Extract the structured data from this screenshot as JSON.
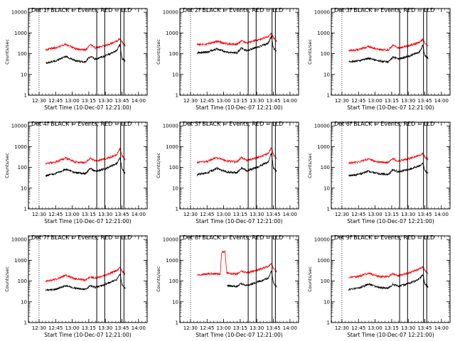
{
  "figure": {
    "x_label": "Start Time (10-Dec-07 12:21:00)",
    "y_label": "Counts/sec",
    "x_ticks": [
      "12:30",
      "12:45",
      "13:00",
      "13:15",
      "13:30",
      "13:45",
      "14:00"
    ],
    "y_ticks": [
      "1",
      "10",
      "100",
      "1000",
      "10000"
    ],
    "colors": {
      "events": "#000000",
      "lld": "#ff0000",
      "axes": "#000000"
    }
  },
  "chart_data": [
    {
      "type": "line",
      "title": "Det 1f BLACK = Events, RED = LLD",
      "x": [
        12.6,
        12.75,
        12.9,
        13.05,
        13.2,
        13.27,
        13.35,
        13.5,
        13.6,
        13.67,
        13.72,
        13.75,
        13.8
      ],
      "series": [
        {
          "values": [
            35,
            45,
            75,
            45,
            40,
            75,
            55,
            80,
            110,
            140,
            280,
            60,
            45
          ]
        },
        {
          "values": [
            160,
            190,
            290,
            170,
            150,
            270,
            190,
            250,
            330,
            400,
            550,
            370,
            240
          ]
        }
      ],
      "xlim": [
        12.34,
        14.13
      ],
      "ylim": [
        1,
        15000
      ],
      "yscale": "log",
      "dotted_x": 12.5,
      "solid_x": [
        13.37,
        13.49,
        13.73,
        13.78
      ]
    },
    {
      "type": "line",
      "title": "Det 2f BLACK = Events, RED = LLD",
      "x": [
        12.6,
        12.75,
        12.9,
        13.05,
        13.2,
        13.27,
        13.35,
        13.5,
        13.6,
        13.67,
        13.72,
        13.75,
        13.8
      ],
      "series": [
        {
          "values": [
            110,
            120,
            170,
            120,
            110,
            190,
            140,
            210,
            260,
            320,
            700,
            180,
            130
          ]
        },
        {
          "values": [
            280,
            290,
            400,
            300,
            280,
            420,
            330,
            450,
            550,
            650,
            950,
            600,
            400
          ]
        }
      ],
      "xlim": [
        12.34,
        14.13
      ],
      "ylim": [
        1,
        15000
      ],
      "yscale": "log",
      "dotted_x": 12.5,
      "solid_x": [
        13.37,
        13.49,
        13.73,
        13.78
      ]
    },
    {
      "type": "line",
      "title": "Det 3f BLACK = Events, RED = LLD",
      "x": [
        12.6,
        12.75,
        12.9,
        13.05,
        13.2,
        13.27,
        13.35,
        13.5,
        13.6,
        13.67,
        13.72,
        13.75,
        13.8
      ],
      "series": [
        {
          "values": [
            40,
            45,
            60,
            45,
            40,
            70,
            55,
            75,
            100,
            120,
            250,
            80,
            60
          ]
        },
        {
          "values": [
            140,
            160,
            220,
            160,
            150,
            250,
            190,
            240,
            300,
            360,
            500,
            330,
            230
          ]
        }
      ],
      "xlim": [
        12.34,
        14.13
      ],
      "ylim": [
        1,
        15000
      ],
      "yscale": "log",
      "dotted_x": 12.5,
      "solid_x": [
        13.37,
        13.49,
        13.73,
        13.78
      ]
    },
    {
      "type": "line",
      "title": "Det 4f BLACK = Events, RED = LLD",
      "x": [
        12.6,
        12.75,
        12.9,
        13.05,
        13.2,
        13.27,
        13.35,
        13.5,
        13.6,
        13.67,
        13.72,
        13.75,
        13.8
      ],
      "series": [
        {
          "values": [
            40,
            50,
            80,
            55,
            50,
            90,
            65,
            85,
            120,
            150,
            300,
            90,
            50
          ]
        },
        {
          "values": [
            150,
            180,
            280,
            180,
            170,
            280,
            200,
            260,
            330,
            420,
            800,
            380,
            250
          ]
        }
      ],
      "xlim": [
        12.34,
        14.13
      ],
      "ylim": [
        1,
        15000
      ],
      "yscale": "log",
      "dotted_x": 12.5,
      "solid_x": [
        13.37,
        13.49,
        13.73,
        13.78
      ]
    },
    {
      "type": "line",
      "title": "Det 5f BLACK = Events, RED = LLD",
      "x": [
        12.6,
        12.75,
        12.9,
        13.05,
        13.2,
        13.27,
        13.35,
        13.5,
        13.6,
        13.67,
        13.72,
        13.75,
        13.8
      ],
      "series": [
        {
          "values": [
            45,
            55,
            90,
            60,
            55,
            95,
            70,
            100,
            140,
            180,
            500,
            100,
            60
          ]
        },
        {
          "values": [
            170,
            190,
            300,
            200,
            180,
            300,
            220,
            290,
            380,
            470,
            900,
            420,
            280
          ]
        }
      ],
      "xlim": [
        12.34,
        14.13
      ],
      "ylim": [
        1,
        15000
      ],
      "yscale": "log",
      "dotted_x": 12.5,
      "solid_x": [
        13.37,
        13.49,
        13.73,
        13.78
      ]
    },
    {
      "type": "line",
      "title": "Det 6f BLACK = Events, RED = LLD",
      "x": [
        12.6,
        12.75,
        12.9,
        13.05,
        13.2,
        13.27,
        13.35,
        13.5,
        13.6,
        13.67,
        13.72,
        13.75,
        13.8
      ],
      "series": [
        {
          "values": [
            40,
            45,
            65,
            50,
            45,
            80,
            60,
            80,
            100,
            120,
            160,
            70,
            50
          ]
        },
        {
          "values": [
            160,
            180,
            250,
            180,
            170,
            260,
            200,
            260,
            320,
            380,
            480,
            330,
            230
          ]
        }
      ],
      "xlim": [
        12.34,
        14.13
      ],
      "ylim": [
        1,
        15000
      ],
      "yscale": "log",
      "dotted_x": 12.5,
      "solid_x": [
        13.37,
        13.49,
        13.73,
        13.78
      ]
    },
    {
      "type": "line",
      "title": "Det 7f BLACK = Events, RED = LLD",
      "x": [
        12.6,
        12.75,
        12.9,
        13.05,
        13.2,
        13.27,
        13.35,
        13.5,
        13.6,
        13.67,
        13.72,
        13.75,
        13.8
      ],
      "series": [
        {
          "values": [
            35,
            40,
            60,
            45,
            40,
            60,
            50,
            70,
            95,
            120,
            220,
            70,
            45
          ]
        },
        {
          "values": [
            100,
            120,
            190,
            130,
            110,
            160,
            140,
            190,
            260,
            320,
            450,
            300,
            220
          ]
        }
      ],
      "xlim": [
        12.34,
        14.13
      ],
      "ylim": [
        1,
        15000
      ],
      "yscale": "log",
      "dotted_x": 12.5,
      "solid_x": [
        13.37,
        13.49,
        13.73,
        13.78
      ]
    },
    {
      "type": "line",
      "title": "Det 8f BLACK = Events, RED = LLD",
      "x": [
        12.6,
        12.75,
        12.9,
        12.95,
        12.97,
        13.02,
        13.05,
        13.2,
        13.27,
        13.35,
        13.5,
        13.6,
        13.67,
        13.72,
        13.75,
        13.8
      ],
      "series": [
        {
          "values": [
            null,
            null,
            null,
            null,
            null,
            null,
            60,
            55,
            75,
            60,
            90,
            110,
            140,
            300,
            80,
            55
          ]
        },
        {
          "values": [
            200,
            220,
            230,
            210,
            2500,
            2600,
            240,
            210,
            300,
            250,
            330,
            420,
            500,
            700,
            400,
            280
          ]
        }
      ],
      "xlim": [
        12.34,
        14.13
      ],
      "ylim": [
        1,
        15000
      ],
      "yscale": "log",
      "dotted_x": 12.5,
      "solid_x": [
        13.37,
        13.49,
        13.73,
        13.78
      ]
    },
    {
      "type": "line",
      "title": "Det 9f BLACK = Events, RED = LLD",
      "x": [
        12.6,
        12.75,
        12.9,
        13.05,
        13.2,
        13.27,
        13.35,
        13.5,
        13.6,
        13.67,
        13.72,
        13.75,
        13.8
      ],
      "series": [
        {
          "values": [
            40,
            45,
            70,
            50,
            45,
            70,
            55,
            75,
            100,
            130,
            200,
            75,
            50
          ]
        },
        {
          "values": [
            150,
            170,
            240,
            170,
            160,
            230,
            180,
            240,
            310,
            380,
            480,
            320,
            230
          ]
        }
      ],
      "xlim": [
        12.34,
        14.13
      ],
      "ylim": [
        1,
        15000
      ],
      "yscale": "log",
      "dotted_x": 12.5,
      "solid_x": [
        13.37,
        13.49,
        13.73,
        13.78
      ]
    }
  ]
}
